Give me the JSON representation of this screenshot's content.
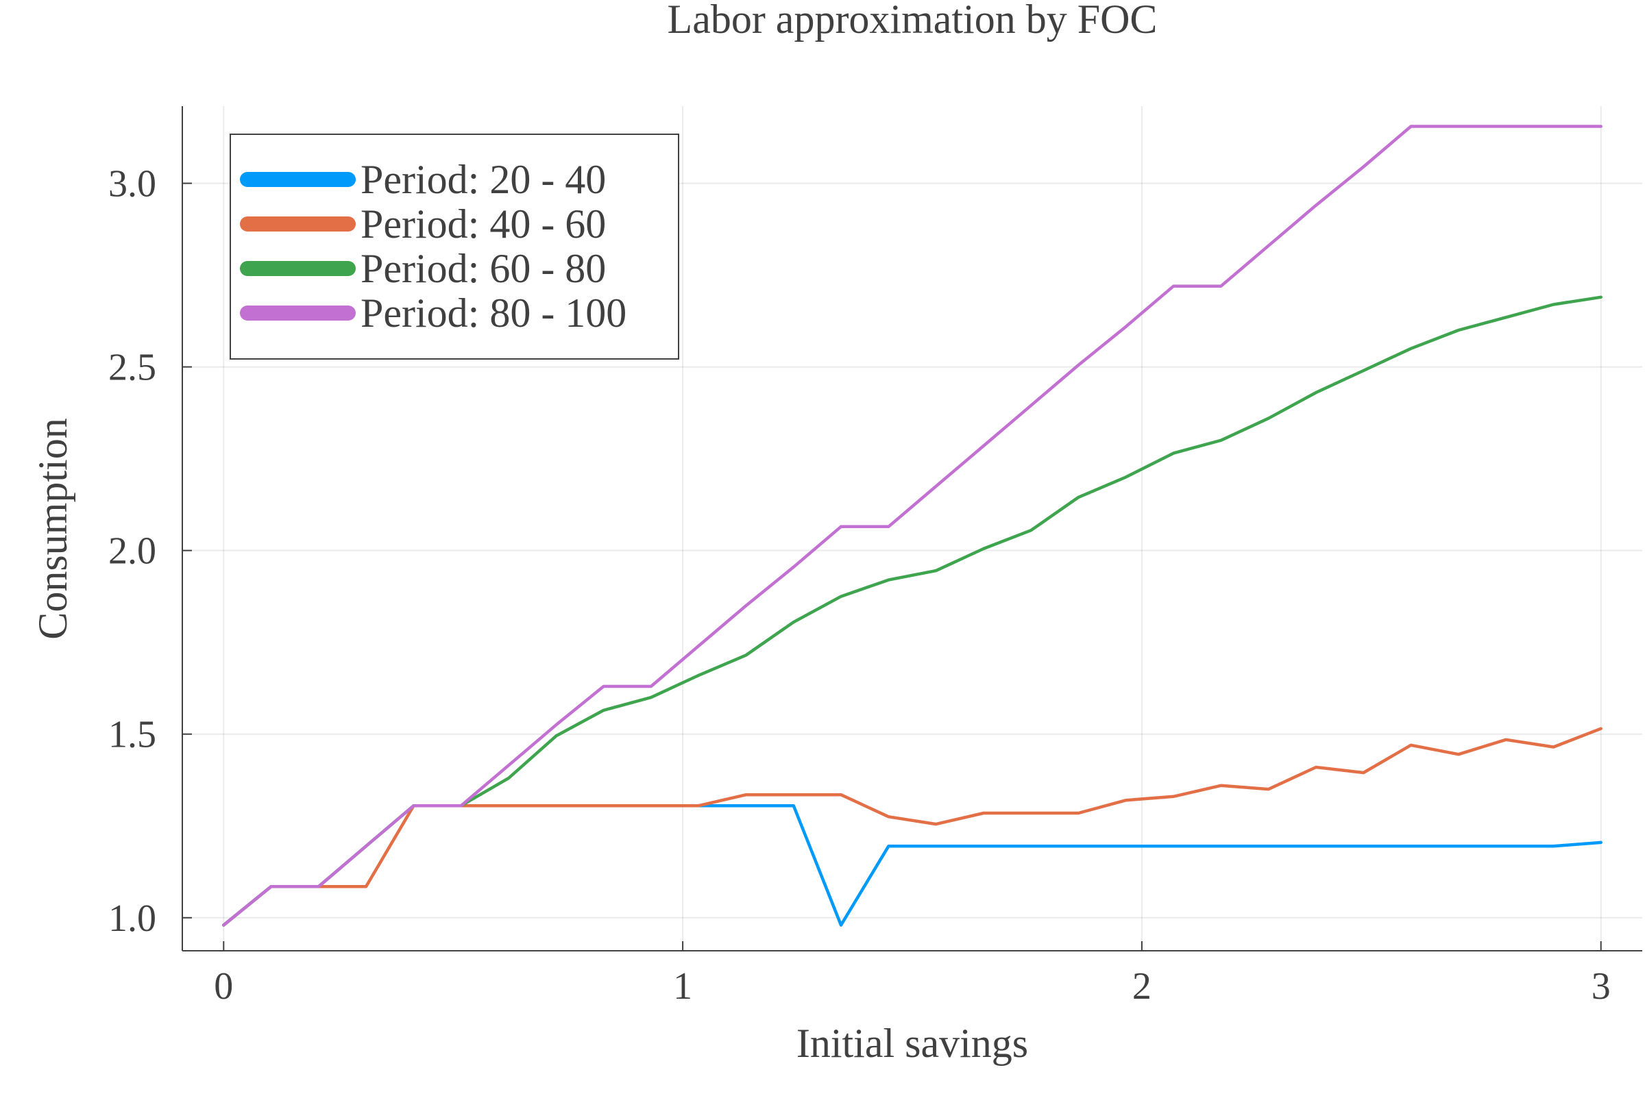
{
  "chart_data": {
    "type": "line",
    "title": "Labor approximation by FOC",
    "xlabel": "Initial savings",
    "ylabel": "Consumption",
    "xlim": [
      -0.09,
      3.09
    ],
    "ylim": [
      0.91,
      3.21
    ],
    "xticks": [
      0,
      1,
      2,
      3
    ],
    "xtick_labels": [
      "0",
      "1",
      "2",
      "3"
    ],
    "yticks": [
      1.0,
      1.5,
      2.0,
      2.5,
      3.0
    ],
    "ytick_labels": [
      "1.0",
      "1.5",
      "2.0",
      "2.5",
      "3.0"
    ],
    "grid": true,
    "legend_position": "top-left",
    "x": [
      0,
      0.1034,
      0.2069,
      0.3103,
      0.4138,
      0.5172,
      0.6207,
      0.7241,
      0.8276,
      0.931,
      1.0345,
      1.1379,
      1.2414,
      1.3448,
      1.4483,
      1.5517,
      1.6552,
      1.7586,
      1.8621,
      1.9655,
      2.069,
      2.1724,
      2.2759,
      2.3793,
      2.4828,
      2.5862,
      2.6897,
      2.7931,
      2.8966,
      3.0
    ],
    "series": [
      {
        "name": "Period: 20 - 40",
        "color": "#009AFA",
        "values": [
          0.98,
          1.085,
          1.085,
          1.195,
          1.305,
          1.305,
          1.305,
          1.305,
          1.305,
          1.305,
          1.305,
          1.305,
          1.305,
          0.98,
          1.195,
          1.195,
          1.195,
          1.195,
          1.195,
          1.195,
          1.195,
          1.195,
          1.195,
          1.195,
          1.195,
          1.195,
          1.195,
          1.195,
          1.195,
          1.205
        ]
      },
      {
        "name": "Period: 40 - 60",
        "color": "#E36F47",
        "values": [
          0.98,
          1.085,
          1.085,
          1.085,
          1.305,
          1.305,
          1.305,
          1.305,
          1.305,
          1.305,
          1.305,
          1.335,
          1.335,
          1.335,
          1.275,
          1.255,
          1.285,
          1.285,
          1.285,
          1.32,
          1.33,
          1.36,
          1.35,
          1.41,
          1.395,
          1.47,
          1.445,
          1.485,
          1.465,
          1.515
        ]
      },
      {
        "name": "Period: 60 - 80",
        "color": "#3EA44E",
        "values": [
          0.98,
          1.085,
          1.085,
          1.195,
          1.305,
          1.305,
          1.38,
          1.495,
          1.565,
          1.6,
          1.66,
          1.715,
          1.805,
          1.875,
          1.92,
          1.945,
          2.005,
          2.055,
          2.145,
          2.2,
          2.265,
          2.3,
          2.36,
          2.43,
          2.49,
          2.55,
          2.6,
          2.635,
          2.67,
          2.69
        ]
      },
      {
        "name": "Period: 80 - 100",
        "color": "#C271D2",
        "values": [
          0.98,
          1.085,
          1.085,
          1.195,
          1.305,
          1.305,
          1.415,
          1.525,
          1.63,
          1.63,
          1.74,
          1.85,
          1.955,
          2.065,
          2.065,
          2.175,
          2.285,
          2.395,
          2.505,
          2.61,
          2.72,
          2.72,
          2.83,
          2.94,
          3.045,
          3.155,
          3.155,
          3.155,
          3.155,
          3.155
        ]
      }
    ]
  }
}
